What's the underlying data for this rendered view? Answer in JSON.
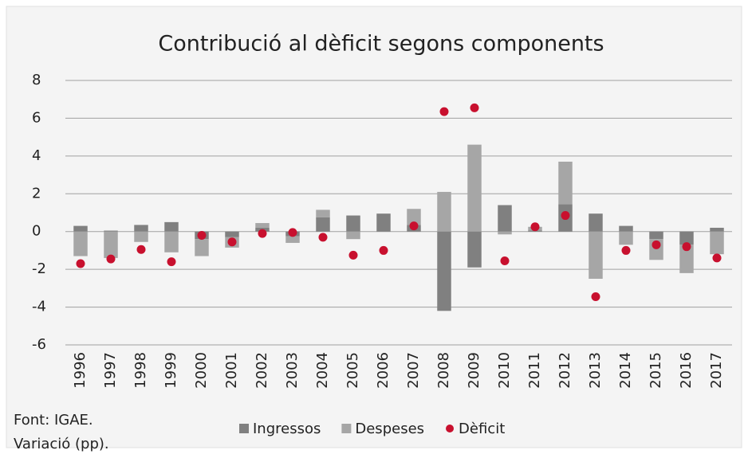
{
  "chart_data": {
    "type": "bar",
    "title": "Contribució al dèficit segons components",
    "notes": [
      "Font: IGAE.",
      "Variació (pp)."
    ],
    "categories": [
      "1996",
      "1997",
      "1998",
      "1999",
      "2000",
      "2001",
      "2002",
      "2003",
      "2004",
      "2005",
      "2006",
      "2007",
      "2008",
      "2009",
      "2010",
      "2011",
      "2012",
      "2013",
      "2014",
      "2015",
      "2016",
      "2017"
    ],
    "series": [
      {
        "name": "Ingressos",
        "type": "bar",
        "color": "#808080",
        "values": [
          0.3,
          0.05,
          0.35,
          0.5,
          -0.4,
          -0.3,
          0.2,
          -0.25,
          0.75,
          0.85,
          0.95,
          0.35,
          -4.2,
          -1.9,
          1.4,
          0.05,
          1.45,
          0.95,
          0.3,
          -0.4,
          -0.7,
          0.2
        ]
      },
      {
        "name": "Despeses",
        "type": "bar",
        "color": "#a6a6a6",
        "values": [
          -1.3,
          -1.4,
          -0.55,
          -1.1,
          -0.9,
          -0.55,
          0.25,
          -0.35,
          0.4,
          -0.4,
          0,
          0.85,
          2.1,
          4.6,
          -0.15,
          0.2,
          2.25,
          -2.5,
          -0.7,
          -1.1,
          -1.5,
          -1.2
        ]
      },
      {
        "name": "Dèficit",
        "type": "scatter",
        "color": "#c8102e",
        "values": [
          -1.7,
          -1.45,
          -0.95,
          -1.6,
          -0.2,
          -0.55,
          -0.1,
          -0.05,
          -0.3,
          -1.25,
          -1.0,
          0.3,
          6.35,
          6.55,
          -1.55,
          0.25,
          0.85,
          -3.45,
          -1.0,
          -0.7,
          -0.8,
          -1.4
        ]
      }
    ],
    "stacked": true,
    "ylim": [
      -6,
      8
    ],
    "yticks": [
      -6,
      -4,
      -2,
      0,
      2,
      4,
      6,
      8
    ],
    "grid": true,
    "legend": "bottom"
  }
}
